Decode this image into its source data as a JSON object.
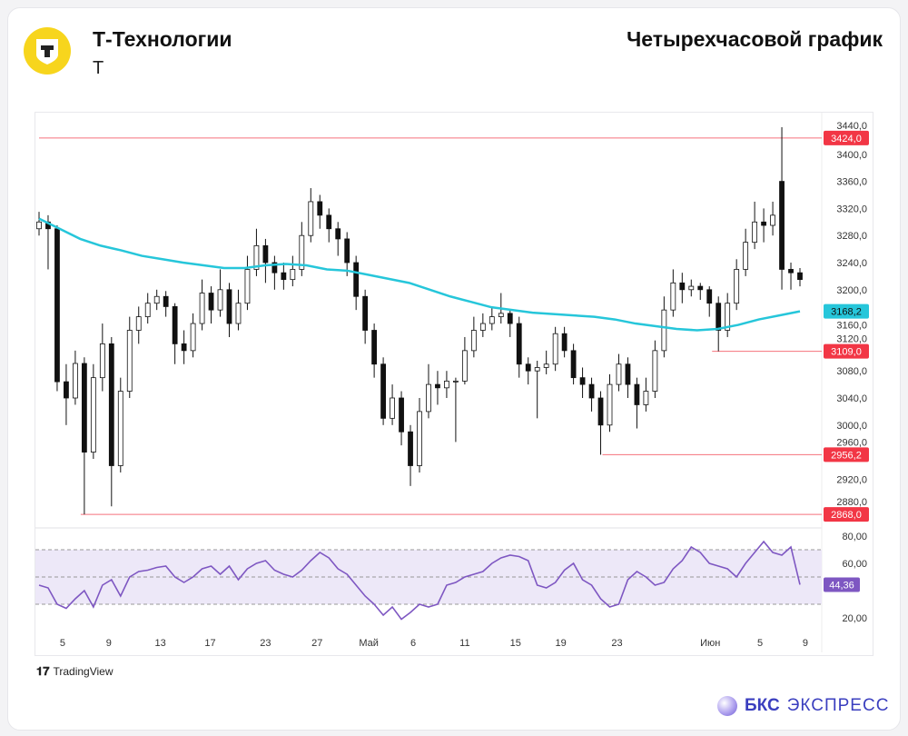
{
  "header": {
    "company": "Т-Технологии",
    "ticker": "T",
    "chart_title": "Четырехчасовой график",
    "logo_letter": "T"
  },
  "footer": {
    "tradingview": "TradingView",
    "brand_bold": "БКС",
    "brand_rest": "ЭКСПРЕСС"
  },
  "colors": {
    "ma": "#26c6da",
    "level": "#f23645",
    "rsi": "#7e57c2",
    "rsi_band": "#ede8f8",
    "up_body": "#ffffff",
    "down_body": "#111111"
  },
  "chart_data": [
    {
      "type": "candlestick",
      "title": "",
      "ylim": [
        2860,
        3450
      ],
      "yticks": [
        "3440,0",
        "3400,0",
        "3360,0",
        "3320,0",
        "3280,0",
        "3240,0",
        "3200,0",
        "3160,0",
        "3120,0",
        "3080,0",
        "3040,0",
        "3000,0",
        "2960,0",
        "2920,0",
        "2880,0"
      ],
      "ytick_values": [
        3440,
        3400,
        3360,
        3320,
        3280,
        3240,
        3200,
        3160,
        3120,
        3080,
        3040,
        3000,
        2960,
        2920,
        2880
      ],
      "xticks": [
        {
          "label": "5",
          "at": 2.6
        },
        {
          "label": "9",
          "at": 7.7
        },
        {
          "label": "13",
          "at": 13.4
        },
        {
          "label": "17",
          "at": 18.9
        },
        {
          "label": "23",
          "at": 25
        },
        {
          "label": "27",
          "at": 30.7
        },
        {
          "label": "Май",
          "at": 36.4
        },
        {
          "label": "6",
          "at": 41.3
        },
        {
          "label": "11",
          "at": 47
        },
        {
          "label": "15",
          "at": 52.6
        },
        {
          "label": "19",
          "at": 57.6
        },
        {
          "label": "23",
          "at": 63.8
        },
        {
          "label": "Июн",
          "at": 74.1
        },
        {
          "label": "5",
          "at": 79.6
        },
        {
          "label": "9",
          "at": 84.6
        }
      ],
      "candles": [
        [
          3290,
          3315,
          3280,
          3300
        ],
        [
          3300,
          3310,
          3230,
          3290
        ],
        [
          3290,
          3295,
          3050,
          3064
        ],
        [
          3064,
          3090,
          3000,
          3040
        ],
        [
          3040,
          3110,
          3030,
          3091
        ],
        [
          3091,
          3100,
          2868,
          2960
        ],
        [
          2960,
          3090,
          2950,
          3070
        ],
        [
          3070,
          3150,
          3050,
          3120
        ],
        [
          3120,
          3130,
          2880,
          2940
        ],
        [
          2940,
          3070,
          2930,
          3050
        ],
        [
          3050,
          3160,
          3040,
          3140
        ],
        [
          3140,
          3175,
          3120,
          3160
        ],
        [
          3160,
          3195,
          3150,
          3180
        ],
        [
          3180,
          3200,
          3170,
          3190
        ],
        [
          3190,
          3198,
          3160,
          3175
        ],
        [
          3175,
          3180,
          3090,
          3120
        ],
        [
          3120,
          3140,
          3090,
          3110
        ],
        [
          3110,
          3165,
          3100,
          3150
        ],
        [
          3150,
          3215,
          3140,
          3195
        ],
        [
          3195,
          3205,
          3150,
          3170
        ],
        [
          3170,
          3230,
          3160,
          3200
        ],
        [
          3200,
          3210,
          3130,
          3150
        ],
        [
          3150,
          3200,
          3140,
          3180
        ],
        [
          3180,
          3250,
          3170,
          3230
        ],
        [
          3230,
          3290,
          3220,
          3265
        ],
        [
          3265,
          3275,
          3210,
          3240
        ],
        [
          3240,
          3250,
          3200,
          3225
        ],
        [
          3225,
          3240,
          3200,
          3215
        ],
        [
          3215,
          3250,
          3205,
          3230
        ],
        [
          3230,
          3300,
          3220,
          3280
        ],
        [
          3280,
          3350,
          3270,
          3330
        ],
        [
          3330,
          3340,
          3290,
          3310
        ],
        [
          3310,
          3320,
          3270,
          3290
        ],
        [
          3290,
          3300,
          3250,
          3275
        ],
        [
          3275,
          3285,
          3220,
          3240
        ],
        [
          3240,
          3250,
          3170,
          3190
        ],
        [
          3190,
          3200,
          3120,
          3140
        ],
        [
          3140,
          3150,
          3070,
          3090
        ],
        [
          3090,
          3100,
          3000,
          3010
        ],
        [
          3010,
          3060,
          3000,
          3040
        ],
        [
          3040,
          3050,
          2970,
          2990
        ],
        [
          2990,
          3000,
          2910,
          2940
        ],
        [
          2940,
          3040,
          2930,
          3020
        ],
        [
          3020,
          3090,
          3010,
          3060
        ],
        [
          3060,
          3080,
          3030,
          3055
        ],
        [
          3055,
          3080,
          3040,
          3065
        ],
        [
          3065,
          3070,
          2975,
          3065
        ],
        [
          3065,
          3130,
          3060,
          3110
        ],
        [
          3110,
          3160,
          3100,
          3140
        ],
        [
          3140,
          3165,
          3130,
          3150
        ],
        [
          3150,
          3175,
          3140,
          3160
        ],
        [
          3160,
          3195,
          3150,
          3165
        ],
        [
          3165,
          3170,
          3130,
          3150
        ],
        [
          3150,
          3160,
          3070,
          3090
        ],
        [
          3090,
          3100,
          3060,
          3080
        ],
        [
          3080,
          3095,
          3010,
          3085
        ],
        [
          3085,
          3110,
          3075,
          3090
        ],
        [
          3090,
          3145,
          3080,
          3135
        ],
        [
          3135,
          3145,
          3100,
          3110
        ],
        [
          3110,
          3120,
          3060,
          3070
        ],
        [
          3070,
          3085,
          3040,
          3060
        ],
        [
          3060,
          3070,
          3020,
          3040
        ],
        [
          3040,
          3050,
          2956.2,
          3000
        ],
        [
          3000,
          3075,
          2990,
          3060
        ],
        [
          3060,
          3105,
          3050,
          3090
        ],
        [
          3090,
          3100,
          3040,
          3060
        ],
        [
          3060,
          3070,
          2995,
          3030
        ],
        [
          3030,
          3070,
          3020,
          3050
        ],
        [
          3050,
          3125,
          3040,
          3110
        ],
        [
          3110,
          3190,
          3100,
          3170
        ],
        [
          3170,
          3230,
          3160,
          3210
        ],
        [
          3210,
          3225,
          3180,
          3200
        ],
        [
          3200,
          3215,
          3190,
          3205
        ],
        [
          3205,
          3210,
          3185,
          3200
        ],
        [
          3200,
          3205,
          3160,
          3180
        ],
        [
          3180,
          3190,
          3109,
          3140
        ],
        [
          3140,
          3195,
          3130,
          3180
        ],
        [
          3180,
          3245,
          3170,
          3230
        ],
        [
          3230,
          3290,
          3220,
          3270
        ],
        [
          3270,
          3330,
          3260,
          3300
        ],
        [
          3300,
          3320,
          3270,
          3295
        ],
        [
          3295,
          3330,
          3280,
          3310
        ],
        [
          3360,
          3440,
          3200,
          3230
        ],
        [
          3230,
          3240,
          3200,
          3225
        ],
        [
          3225,
          3232,
          3205,
          3215
        ]
      ],
      "moving_average": {
        "current": "3168,2",
        "values": [
          3305,
          3290,
          3275,
          3265,
          3258,
          3250,
          3245,
          3240,
          3236,
          3232,
          3232,
          3236,
          3238,
          3236,
          3230,
          3228,
          3222,
          3216,
          3210,
          3200,
          3190,
          3182,
          3174,
          3170,
          3166,
          3164,
          3162,
          3160,
          3156,
          3150,
          3146,
          3142,
          3140,
          3142,
          3148,
          3156,
          3162,
          3168
        ]
      },
      "levels": [
        {
          "value": 3424,
          "label": "3424,0",
          "from": 0
        },
        {
          "value": 3109,
          "label": "3109,0",
          "from": 74.3
        },
        {
          "value": 2956.2,
          "label": "2956,2",
          "from": 62.2
        },
        {
          "value": 2868,
          "label": "2868,0",
          "from": 4.6
        }
      ]
    },
    {
      "type": "line",
      "title": "",
      "ylim": [
        15,
        85
      ],
      "yticks": [
        "80,00",
        "60,00",
        "20,00"
      ],
      "ytick_values": [
        80,
        60,
        20
      ],
      "bands": [
        70,
        50,
        30
      ],
      "current": "44,36",
      "values": [
        44,
        42,
        30,
        27,
        34,
        40,
        28,
        44,
        48,
        36,
        50,
        54,
        55,
        57,
        58,
        50,
        46,
        50,
        56,
        58,
        52,
        58,
        48,
        56,
        60,
        62,
        55,
        52,
        50,
        55,
        62,
        68,
        64,
        56,
        52,
        44,
        36,
        30,
        22,
        28,
        19,
        24,
        30,
        28,
        30,
        44,
        46,
        50,
        52,
        54,
        60,
        64,
        66,
        65,
        62,
        44,
        42,
        46,
        55,
        60,
        48,
        44,
        34,
        28,
        30,
        48,
        54,
        50,
        44,
        46,
        56,
        62,
        72,
        68,
        60,
        58,
        56,
        50,
        60,
        68,
        76,
        68,
        66,
        72,
        44.36
      ]
    }
  ]
}
